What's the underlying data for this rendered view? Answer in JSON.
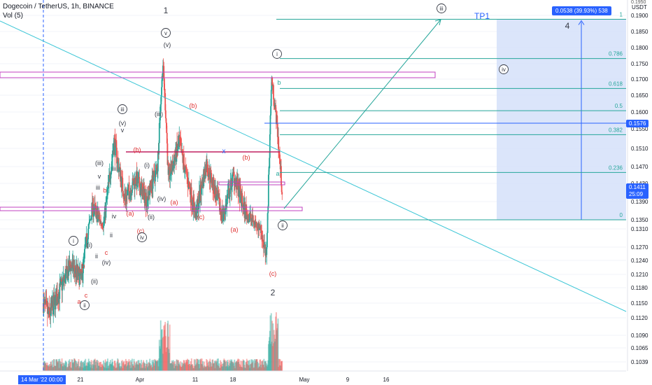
{
  "header": {
    "symbol_line": "Dogecoin / TetherUS, 1h, BINANCE",
    "indicator_line": "Vol (5)"
  },
  "price_axis": {
    "currency": "USDT",
    "top_partial": "0.1950",
    "ticks": [
      "0.1900",
      "0.1850",
      "0.1800",
      "0.1750",
      "0.1700",
      "0.1650",
      "0.1600",
      "0.1550",
      "0.1510",
      "0.1470",
      "0.1430",
      "0.1390",
      "0.1350",
      "0.1310",
      "0.1270",
      "0.1240",
      "0.1210",
      "0.1180",
      "0.1150",
      "0.1120",
      "0.1090",
      "0.1065",
      "0.1039"
    ],
    "current_price": "0.1411",
    "countdown": "25:09",
    "marker_price": "0.1576"
  },
  "time_axis": {
    "labels": [
      "21",
      "Apr",
      "11",
      "18",
      "May",
      "9",
      "16"
    ],
    "selected_date": "14 Mar '22  00:00"
  },
  "measure": {
    "label": "0.0538 (39.93%) 538",
    "target_label": "TP1"
  },
  "fib_levels": [
    {
      "ratio": "1"
    },
    {
      "ratio": "0.786"
    },
    {
      "ratio": "0.618"
    },
    {
      "ratio": "0.5"
    },
    {
      "ratio": "0.382"
    },
    {
      "ratio": "0.236"
    },
    {
      "ratio": "0"
    }
  ],
  "wave_labels": [
    {
      "text": "1",
      "style": "plain"
    },
    {
      "text": "(v)",
      "style": "dark"
    },
    {
      "text": "v",
      "style": "circle"
    },
    {
      "text": "(iii)",
      "style": "dark"
    },
    {
      "text": "(iv)",
      "style": "dark"
    },
    {
      "text": "iii",
      "style": "circle"
    },
    {
      "text": "(v)",
      "style": "dark"
    },
    {
      "text": "v",
      "style": "dark"
    },
    {
      "text": "(iii)",
      "style": "dark"
    },
    {
      "text": "v",
      "style": "dark"
    },
    {
      "text": "iii",
      "style": "dark"
    },
    {
      "text": "iii",
      "style": "dark"
    },
    {
      "text": "b",
      "style": "red"
    },
    {
      "text": "(b)",
      "style": "red"
    },
    {
      "text": "(i)",
      "style": "dark"
    },
    {
      "text": "(a)",
      "style": "red"
    },
    {
      "text": "(a)",
      "style": "red"
    },
    {
      "text": "(ii)",
      "style": "dark"
    },
    {
      "text": "(c)",
      "style": "red"
    },
    {
      "text": "iv",
      "style": "circle"
    },
    {
      "text": "iv",
      "style": "dark"
    },
    {
      "text": "ii",
      "style": "dark"
    },
    {
      "text": "c",
      "style": "red"
    },
    {
      "text": "i",
      "style": "circle"
    },
    {
      "text": "(i)",
      "style": "dark"
    },
    {
      "text": "ii",
      "style": "dark"
    },
    {
      "text": "(iv)",
      "style": "dark"
    },
    {
      "text": "b",
      "style": "red"
    },
    {
      "text": "(ii)",
      "style": "dark"
    },
    {
      "text": "c",
      "style": "red"
    },
    {
      "text": "a",
      "style": "red"
    },
    {
      "text": "ii",
      "style": "circle"
    },
    {
      "text": "(b)",
      "style": "red"
    },
    {
      "text": "x",
      "style": "blue"
    },
    {
      "text": "(b)",
      "style": "red"
    },
    {
      "text": "(c)",
      "style": "red"
    },
    {
      "text": "(a)",
      "style": "red"
    },
    {
      "text": "(c)",
      "style": "red"
    },
    {
      "text": "2",
      "style": "plain"
    },
    {
      "text": "i",
      "style": "circle"
    },
    {
      "text": "b",
      "style": "teal"
    },
    {
      "text": "a",
      "style": "teal"
    },
    {
      "text": "ii",
      "style": "circle"
    },
    {
      "text": "iii",
      "style": "circle"
    },
    {
      "text": "iv",
      "style": "circle"
    },
    {
      "text": "4",
      "style": "plain"
    }
  ],
  "colors": {
    "up": "#26a69a",
    "down": "#ef5350",
    "trendline": "#3cc6d6",
    "fib": "#26a69a",
    "zone": "#d5e1f9",
    "badge": "#2962ff",
    "box": "#c040c0"
  },
  "chart_data": {
    "type": "candlestick",
    "symbol": "Dogecoin / TetherUS",
    "interval": "1h",
    "exchange": "BINANCE",
    "y_range": [
      0.102,
      0.196
    ],
    "last_price": 0.1411,
    "anchors": [
      {
        "date": "2022-03-14",
        "price": 0.115
      },
      {
        "date": "2022-03-15",
        "price": 0.1125
      },
      {
        "date": "2022-03-17",
        "price": 0.1175
      },
      {
        "date": "2022-03-19",
        "price": 0.123
      },
      {
        "date": "2022-03-21",
        "price": 0.12
      },
      {
        "date": "2022-03-23",
        "price": 0.138
      },
      {
        "date": "2022-03-25",
        "price": 0.133
      },
      {
        "date": "2022-03-27",
        "price": 0.1525
      },
      {
        "date": "2022-03-29",
        "price": 0.1395
      },
      {
        "date": "2022-03-31",
        "price": 0.144
      },
      {
        "date": "2022-04-02",
        "price": 0.1395
      },
      {
        "date": "2022-04-04",
        "price": 0.147
      },
      {
        "date": "2022-04-05",
        "price": 0.175
      },
      {
        "date": "2022-04-06",
        "price": 0.144
      },
      {
        "date": "2022-04-08",
        "price": 0.152
      },
      {
        "date": "2022-04-11",
        "price": 0.136
      },
      {
        "date": "2022-04-13",
        "price": 0.1475
      },
      {
        "date": "2022-04-16",
        "price": 0.1355
      },
      {
        "date": "2022-04-18",
        "price": 0.145
      },
      {
        "date": "2022-04-20",
        "price": 0.137
      },
      {
        "date": "2022-04-23",
        "price": 0.1315
      },
      {
        "date": "2022-04-24",
        "price": 0.124
      },
      {
        "date": "2022-04-25",
        "price": 0.17
      },
      {
        "date": "2022-04-26",
        "price": 0.156
      },
      {
        "date": "2022-04-27",
        "price": 0.14
      }
    ],
    "fibonacci": [
      {
        "ratio": 1,
        "price": 0.1888
      },
      {
        "ratio": 0.786,
        "price": 0.1766
      },
      {
        "ratio": 0.618,
        "price": 0.1671
      },
      {
        "ratio": 0.5,
        "price": 0.1604
      },
      {
        "ratio": 0.382,
        "price": 0.1538
      },
      {
        "ratio": 0.236,
        "price": 0.1456
      },
      {
        "ratio": 0,
        "price": 0.135
      }
    ],
    "measure": {
      "change": 0.0538,
      "percent": 39.93,
      "ticks": 538
    }
  }
}
